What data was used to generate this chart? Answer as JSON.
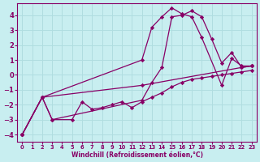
{
  "xlabel": "Windchill (Refroidissement éolien,°C)",
  "ylabel": "",
  "bg_color": "#c8eef0",
  "grid_color": "#b0dde0",
  "line_color": "#880066",
  "xlim": [
    -0.5,
    23.5
  ],
  "ylim": [
    -4.5,
    4.8
  ],
  "yticks": [
    -4,
    -3,
    -2,
    -1,
    0,
    1,
    2,
    3,
    4
  ],
  "xticks": [
    0,
    1,
    2,
    3,
    4,
    5,
    6,
    7,
    8,
    9,
    10,
    11,
    12,
    13,
    14,
    15,
    16,
    17,
    18,
    19,
    20,
    21,
    22,
    23
  ],
  "series": [
    {
      "x": [
        0,
        2,
        12,
        13,
        14,
        15,
        16,
        17,
        18,
        20,
        21,
        22,
        23
      ],
      "y": [
        -4.0,
        -1.5,
        1.0,
        3.2,
        3.9,
        4.5,
        4.1,
        3.9,
        2.5,
        -0.7,
        1.1,
        0.6,
        0.6
      ]
    },
    {
      "x": [
        0,
        2,
        3,
        12,
        13,
        14,
        15,
        16,
        17,
        18,
        19,
        20,
        21,
        22,
        23
      ],
      "y": [
        -4.0,
        -1.5,
        -3.0,
        -1.7,
        -0.5,
        0.5,
        3.9,
        4.0,
        4.3,
        3.9,
        2.4,
        0.8,
        1.5,
        0.5,
        0.6
      ]
    },
    {
      "x": [
        0,
        2,
        12,
        22,
        23
      ],
      "y": [
        -4.0,
        -1.5,
        -0.7,
        0.5,
        0.6
      ]
    },
    {
      "x": [
        0,
        2,
        3,
        5,
        6,
        7,
        8,
        9,
        10,
        11,
        12,
        13,
        14,
        15,
        16,
        17,
        18,
        19,
        20,
        21,
        22,
        23
      ],
      "y": [
        -4.0,
        -1.5,
        -3.0,
        -3.0,
        -1.8,
        -2.3,
        -2.2,
        -2.0,
        -1.8,
        -2.2,
        -1.8,
        -1.5,
        -1.2,
        -0.8,
        -0.5,
        -0.3,
        -0.2,
        -0.1,
        0.0,
        0.1,
        0.2,
        0.3
      ]
    }
  ]
}
